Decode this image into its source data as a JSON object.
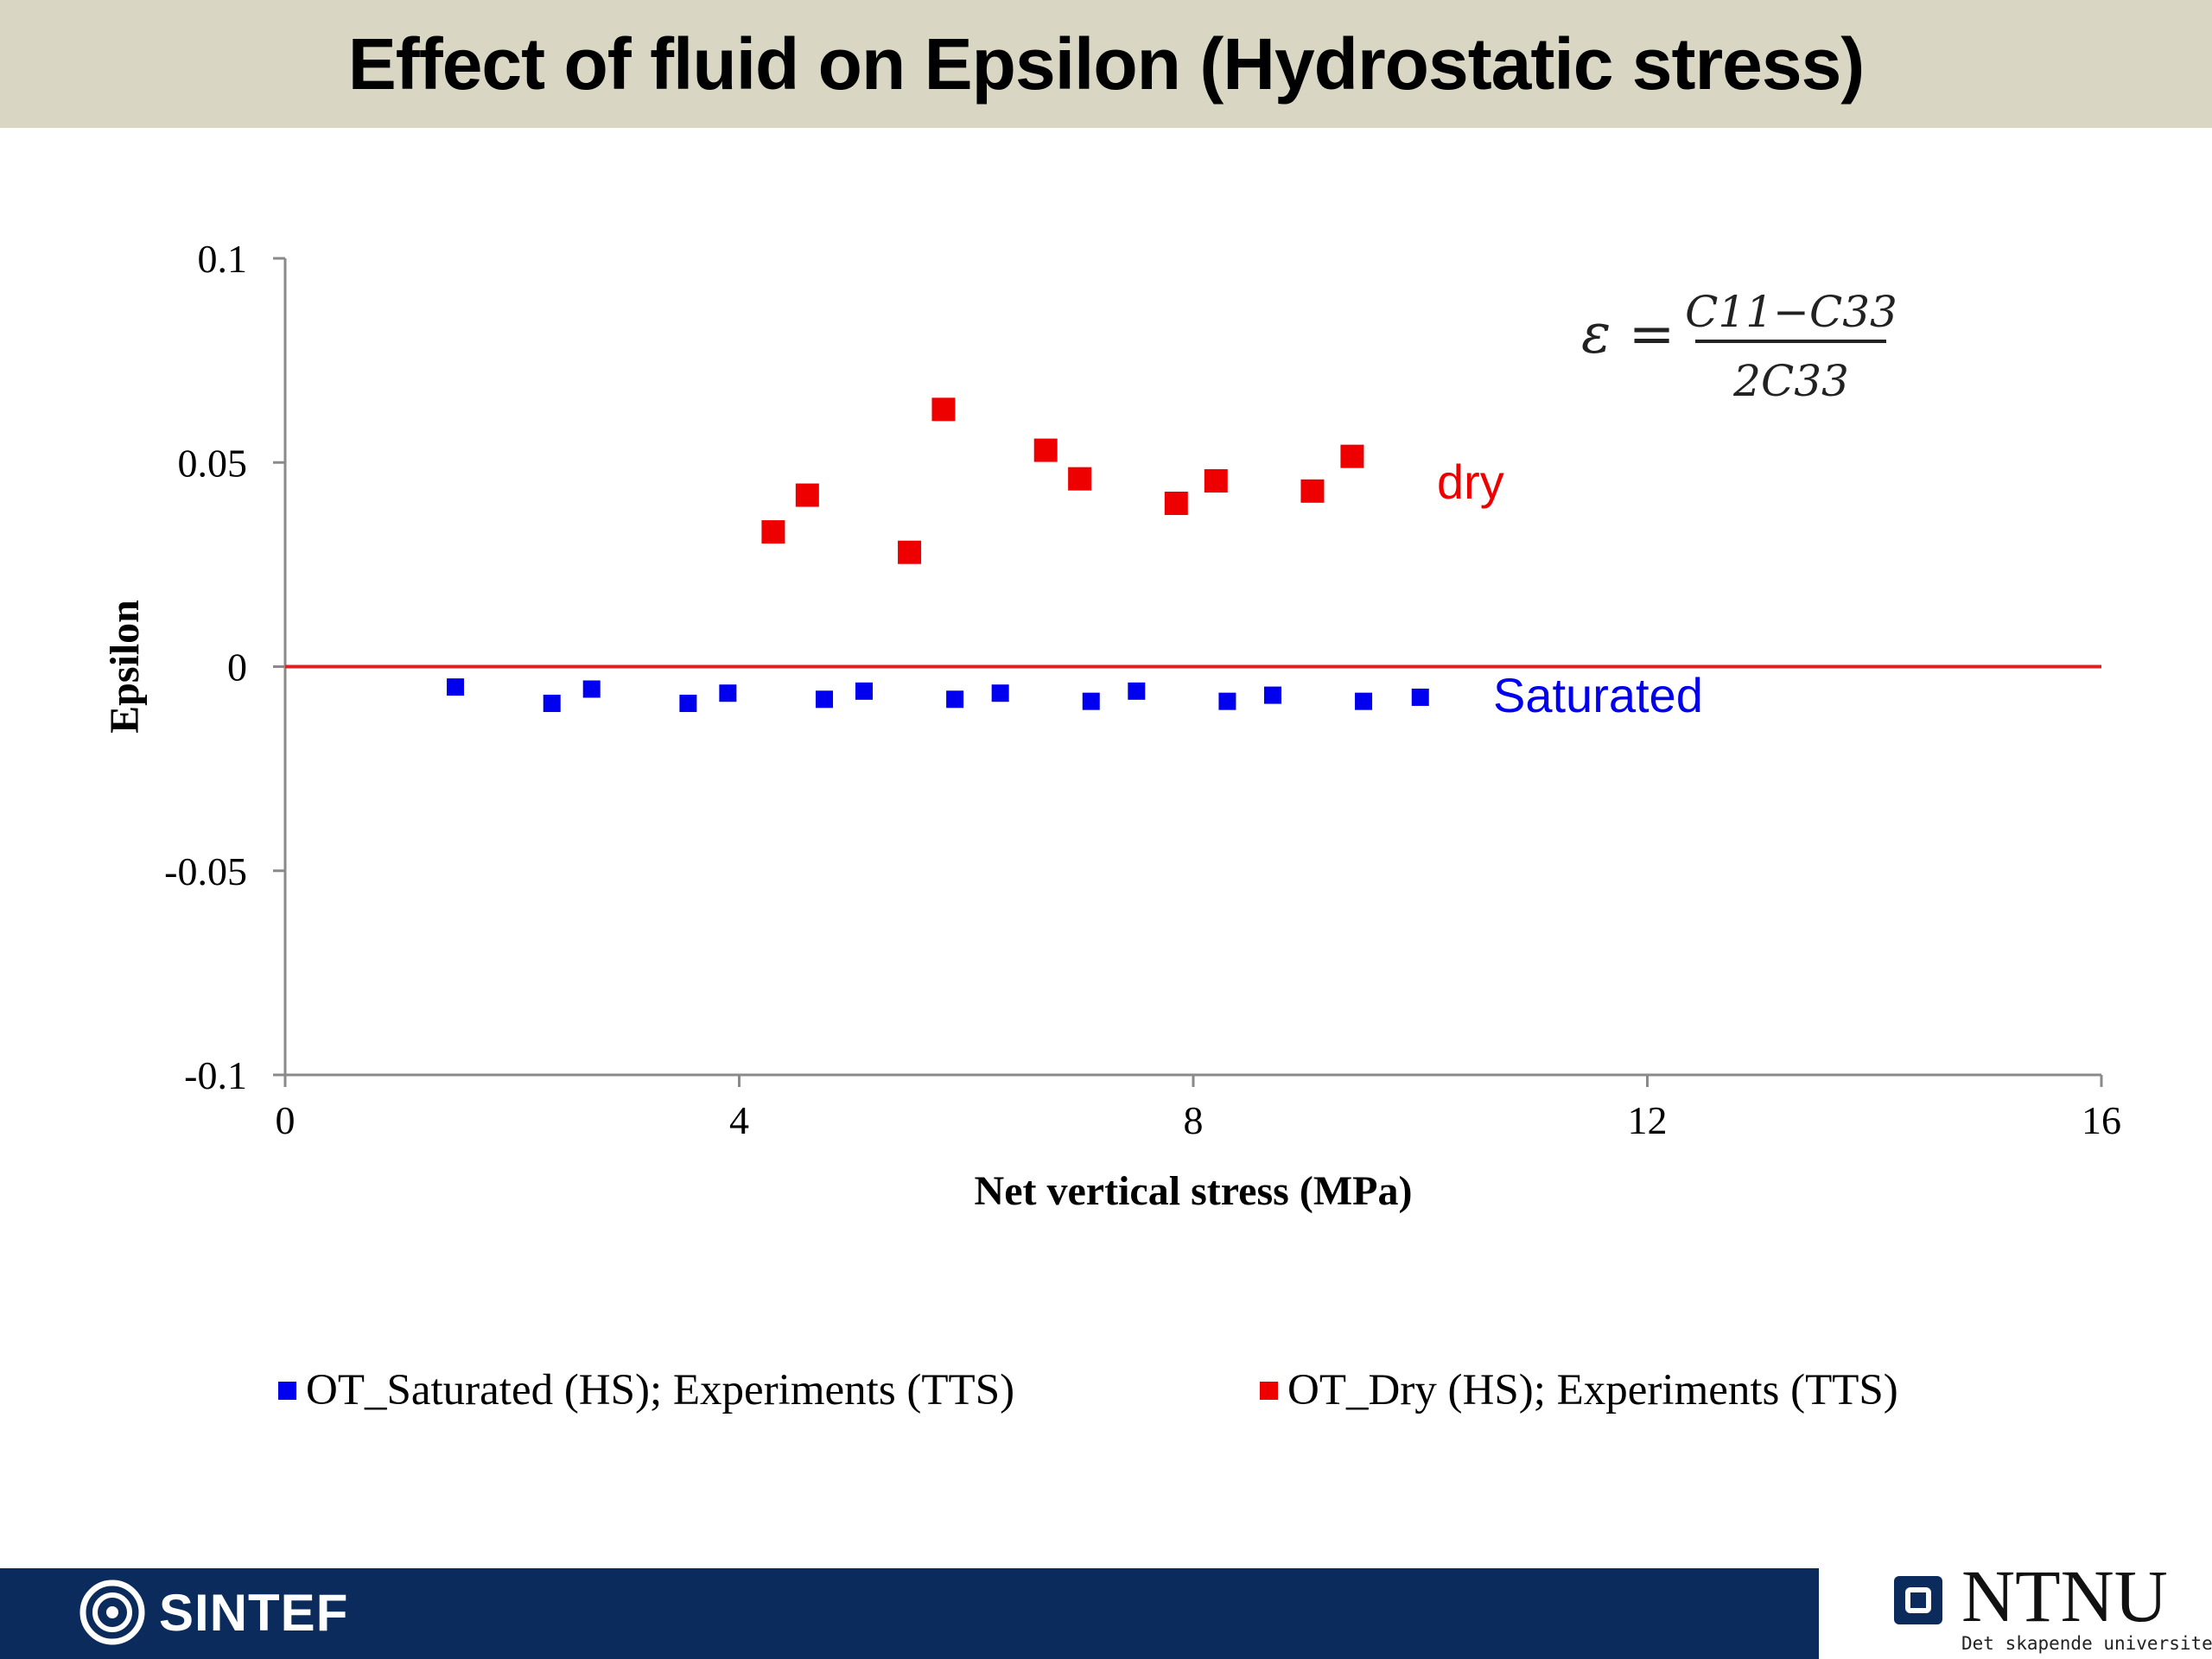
{
  "title": "Effect of fluid on Epsilon (Hydrostatic stress)",
  "chart_data": {
    "type": "scatter",
    "xlabel": "Net vertical stress (MPa)",
    "ylabel": "Epsilon",
    "xlim": [
      0,
      16
    ],
    "ylim": [
      -0.1,
      0.1
    ],
    "xticks": [
      "0",
      "4",
      "8",
      "12",
      "16"
    ],
    "yticks": [
      "-0.1",
      "-0.05",
      "0",
      "0.05",
      "0.1"
    ],
    "reference_line": {
      "y": 0,
      "color": "#e02020"
    },
    "grid": false,
    "legend_position": "bottom",
    "series": [
      {
        "name": "OT_Saturated (HS); Experiments (TTS)",
        "color": "#0000ee",
        "marker": "square",
        "annotation": "Saturated",
        "points": [
          [
            1.5,
            -0.005
          ],
          [
            2.35,
            -0.009
          ],
          [
            2.7,
            -0.0055
          ],
          [
            3.55,
            -0.009
          ],
          [
            3.9,
            -0.0065
          ],
          [
            4.75,
            -0.008
          ],
          [
            5.1,
            -0.006
          ],
          [
            5.9,
            -0.008
          ],
          [
            6.3,
            -0.0065
          ],
          [
            7.1,
            -0.0085
          ],
          [
            7.5,
            -0.006
          ],
          [
            8.3,
            -0.0085
          ],
          [
            8.7,
            -0.007
          ],
          [
            9.5,
            -0.0085
          ],
          [
            10.0,
            -0.0075
          ]
        ]
      },
      {
        "name": "OT_Dry (HS); Experiments (TTS)",
        "color": "#ee0000",
        "marker": "square",
        "annotation": "dry",
        "points": [
          [
            4.3,
            0.033
          ],
          [
            4.6,
            0.042
          ],
          [
            5.5,
            0.028
          ],
          [
            5.8,
            0.063
          ],
          [
            6.7,
            0.053
          ],
          [
            7.0,
            0.046
          ],
          [
            7.85,
            0.04
          ],
          [
            8.2,
            0.0455
          ],
          [
            9.05,
            0.043
          ],
          [
            9.4,
            0.0515
          ]
        ]
      }
    ],
    "formula": {
      "lhs": "ε =",
      "numerator": "C11−C33",
      "denominator": "2C33"
    }
  },
  "logos": {
    "left": "SINTEF",
    "right": "NTNU",
    "right_tagline": "Det skapende universitet"
  }
}
